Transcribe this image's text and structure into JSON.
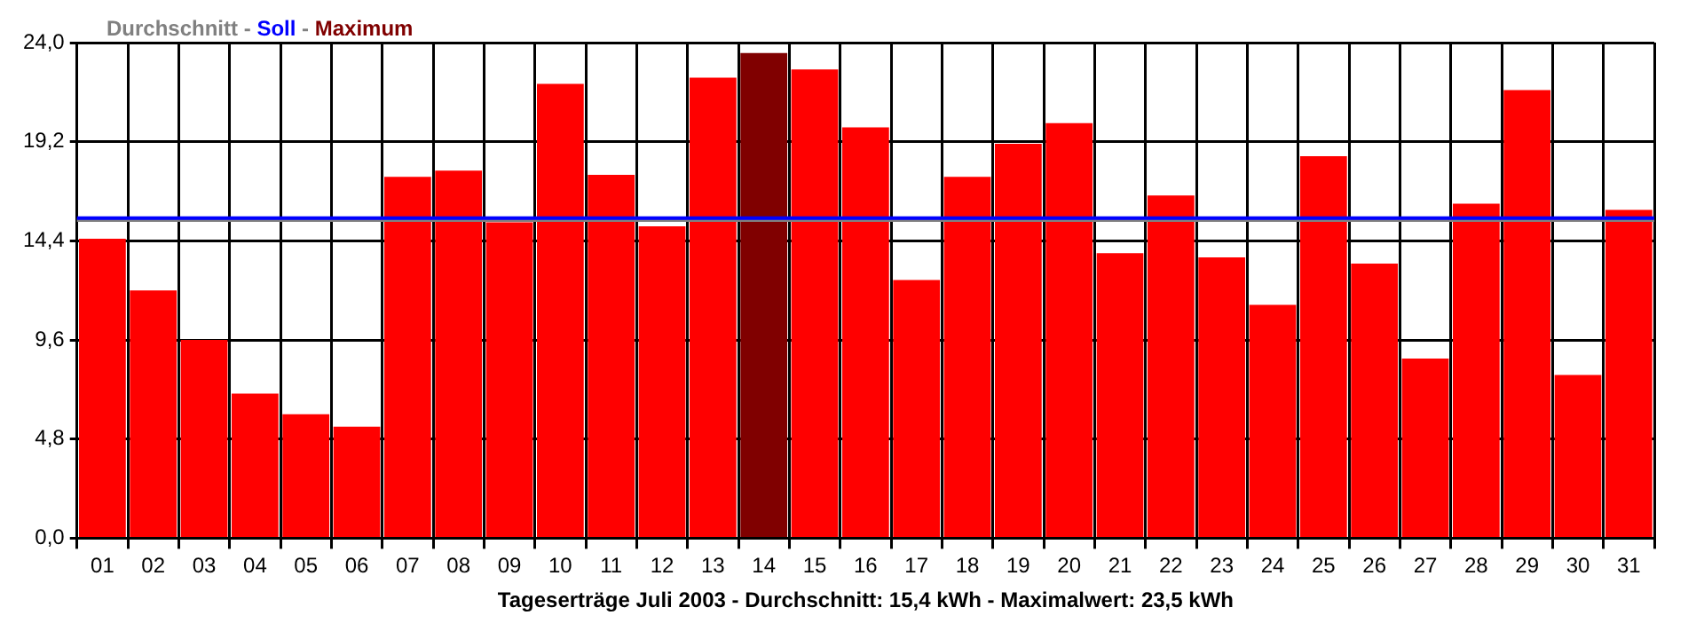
{
  "chart_data": {
    "type": "bar",
    "xlabel": "Tageserträge Juli 2003 - Durchschnitt: 15,4 kWh - Maximalwert: 23,5 kWh",
    "title": "Durchschnitt - Soll - Maximum",
    "categories": [
      "01",
      "02",
      "03",
      "04",
      "05",
      "06",
      "07",
      "08",
      "09",
      "10",
      "11",
      "12",
      "13",
      "14",
      "15",
      "16",
      "17",
      "18",
      "19",
      "20",
      "21",
      "22",
      "23",
      "24",
      "25",
      "26",
      "27",
      "28",
      "29",
      "30",
      "31"
    ],
    "values": [
      14.5,
      12.0,
      9.6,
      7.0,
      6.0,
      5.4,
      17.5,
      17.8,
      15.3,
      22.0,
      17.6,
      15.1,
      22.3,
      23.5,
      22.7,
      19.9,
      12.5,
      17.5,
      19.1,
      20.1,
      13.8,
      16.6,
      13.6,
      11.3,
      18.5,
      13.3,
      8.7,
      16.2,
      21.7,
      7.9,
      15.9
    ],
    "colors": [
      "#ff0000",
      "#ff0000",
      "#ff0000",
      "#ff0000",
      "#ff0000",
      "#ff0000",
      "#ff0000",
      "#ff0000",
      "#ff0000",
      "#ff0000",
      "#ff0000",
      "#ff0000",
      "#ff0000",
      "#800000",
      "#ff0000",
      "#ff0000",
      "#ff0000",
      "#ff0000",
      "#ff0000",
      "#ff0000",
      "#ff0000",
      "#ff0000",
      "#ff0000",
      "#ff0000",
      "#ff0000",
      "#ff0000",
      "#ff0000",
      "#ff0000",
      "#ff0000",
      "#ff0000",
      "#ff0000"
    ],
    "ylim": [
      0,
      24
    ],
    "yticks": [
      {
        "value": 0,
        "label": "0,0"
      },
      {
        "value": 4.8,
        "label": "4,8"
      },
      {
        "value": 9.6,
        "label": "9,6"
      },
      {
        "value": 14.4,
        "label": "14,4"
      },
      {
        "value": 19.2,
        "label": "19,2"
      },
      {
        "value": 24,
        "label": "24,0"
      }
    ],
    "ref_lines": [
      {
        "axis": "y",
        "value": 15.4,
        "color": "#808080"
      },
      {
        "axis": "y",
        "value": 15.5,
        "color": "#0000ff"
      }
    ],
    "grid": true,
    "legend": false
  }
}
